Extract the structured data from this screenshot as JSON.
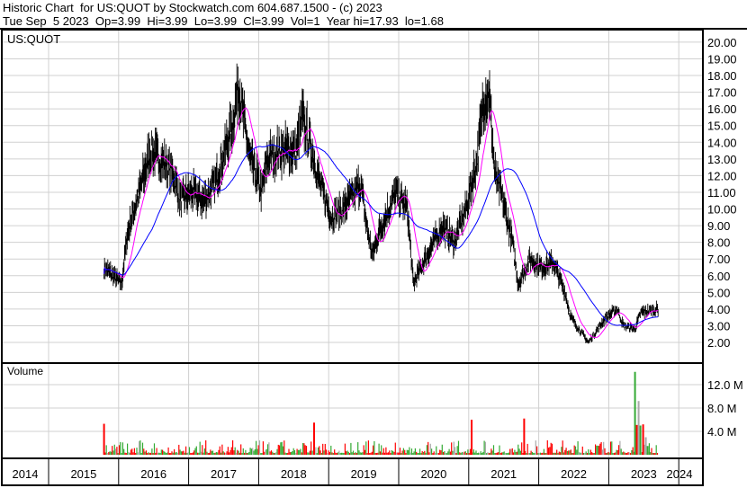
{
  "header": {
    "title": "Historic Chart  for US:QUOT by Stockwatch.com 604.687.1500 - (c) 2023",
    "quote_line": "Tue Sep  5 2023  Op=3.99  Hi=3.99  Lo=3.99  Cl=3.99  Vol=1  Year hi=17.93  lo=1.68"
  },
  "chart_data": [
    {
      "type": "line",
      "title": "US:QUOT",
      "ylim": [
        1,
        21
      ],
      "y_ticks": [
        "20.00",
        "19.00",
        "18.00",
        "17.00",
        "16.00",
        "15.00",
        "14.00",
        "13.00",
        "12.00",
        "11.00",
        "10.00",
        "9.00",
        "8.00",
        "7.00",
        "6.00",
        "5.00",
        "4.00",
        "3.00",
        "2.00"
      ],
      "x_ticks": [
        "2014",
        "2015",
        "2016",
        "2017",
        "2018",
        "2019",
        "2020",
        "2021",
        "2022",
        "2023",
        "2024"
      ],
      "grid": true,
      "series": [
        {
          "dates": [
            "2015-10",
            "2016-01",
            "2016-02",
            "2016-04",
            "2016-06",
            "2016-09",
            "2016-10",
            "2016-11",
            "2017-01",
            "2017-03",
            "2017-05",
            "2017-08",
            "2017-09",
            "2017-11",
            "2018-01",
            "2018-02",
            "2018-04",
            "2018-07",
            "2018-08",
            "2018-10",
            "2018-11",
            "2019-01",
            "2019-03",
            "2019-06",
            "2019-07",
            "2019-08",
            "2019-09",
            "2019-12",
            "2020-02",
            "2020-03",
            "2020-05",
            "2020-08",
            "2020-10",
            "2020-12",
            "2021-02",
            "2021-03",
            "2021-04",
            "2021-05",
            "2021-06",
            "2021-08",
            "2021-09",
            "2021-11",
            "2022-01",
            "2022-03",
            "2022-05",
            "2022-06",
            "2022-09",
            "2022-10",
            "2022-12",
            "2023-02",
            "2023-03",
            "2023-05",
            "2023-06",
            "2023-09"
          ],
          "close": [
            6.5,
            5.5,
            8.5,
            11,
            13.5,
            12.5,
            12,
            10.5,
            11,
            10.5,
            11.5,
            15,
            17.5,
            13,
            11,
            13,
            13.5,
            13.5,
            15.5,
            13,
            11.5,
            9.5,
            10,
            11.5,
            9,
            7.2,
            8.5,
            11,
            10,
            5.5,
            7,
            9,
            8,
            10,
            13,
            16.5,
            17,
            12,
            11,
            8,
            5.5,
            7,
            6.5,
            6.8,
            5,
            3.5,
            2,
            2.5,
            3.5,
            4,
            3,
            2.8,
            3.8,
            3.99
          ]
        }
      ],
      "colors": {
        "bars": "#000000",
        "ma_short": "#ff00ff",
        "ma_long": "#0000ff"
      }
    },
    {
      "type": "bar",
      "title": "Volume",
      "y_ticks": [
        "12.0 M",
        "8.0 M",
        "4.0 M"
      ],
      "ylim": [
        0,
        16
      ],
      "spikes": [
        {
          "date": "2015-10",
          "value": 5.3
        },
        {
          "date": "2018-10",
          "value": 5.5
        },
        {
          "date": "2021-01",
          "value": 6.0
        },
        {
          "date": "2021-10",
          "value": 6.2
        },
        {
          "date": "2023-05",
          "value": 14.2
        }
      ],
      "colors": {
        "up": "#33aa33",
        "down": "#ff0000",
        "flat": "#aaaaaa"
      }
    }
  ]
}
